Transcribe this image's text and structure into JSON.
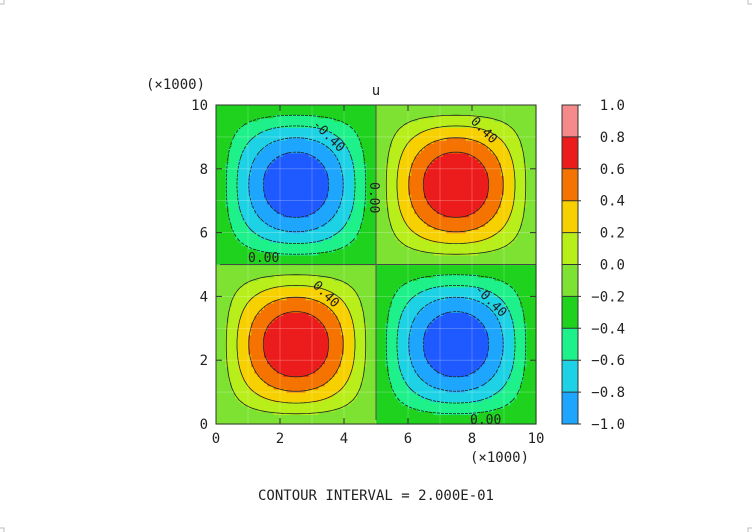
{
  "chart_data": {
    "type": "contour",
    "title": "u",
    "x_scale_label": "(×1000)",
    "y_scale_label": "(×1000)",
    "xlim": [
      0,
      10
    ],
    "ylim": [
      0,
      10
    ],
    "x_ticks": [
      "0",
      "2",
      "4",
      "6",
      "8",
      "10"
    ],
    "y_ticks": [
      "0",
      "2",
      "4",
      "6",
      "8",
      "10"
    ],
    "field": "u = sin(2*pi*x/10) * sin(2*pi*y/10), x and y in units of 1000",
    "extrema": [
      {
        "x": 2.5,
        "y": 7.5,
        "value": -1.0
      },
      {
        "x": 7.5,
        "y": 7.5,
        "value": 1.0
      },
      {
        "x": 2.5,
        "y": 2.5,
        "value": 1.0
      },
      {
        "x": 7.5,
        "y": 2.5,
        "value": -1.0
      }
    ],
    "levels": [
      -1.0,
      -0.8,
      -0.6,
      -0.4,
      -0.2,
      0.0,
      0.2,
      0.4,
      0.6,
      0.8,
      1.0
    ],
    "colorbar": {
      "labels": [
        "1.0",
        "0.8",
        "0.6",
        "0.4",
        "0.2",
        "0.0",
        "−0.2",
        "−0.4",
        "−0.6",
        "−0.8",
        "−1.0"
      ],
      "colors": [
        "#f48a8a",
        "#ec1c1c",
        "#f57300",
        "#f7d000",
        "#b8ee1a",
        "#7ee232",
        "#1ed21e",
        "#1ef08a",
        "#1ed2e6",
        "#1ea6ff",
        "#1e5aff"
      ]
    },
    "contour_labels": [
      "-0.40",
      "0.40",
      "0.00",
      "0.00",
      "0.40",
      "-0.40",
      "0.00"
    ],
    "footer": "CONTOUR INTERVAL = 2.000E-01"
  }
}
